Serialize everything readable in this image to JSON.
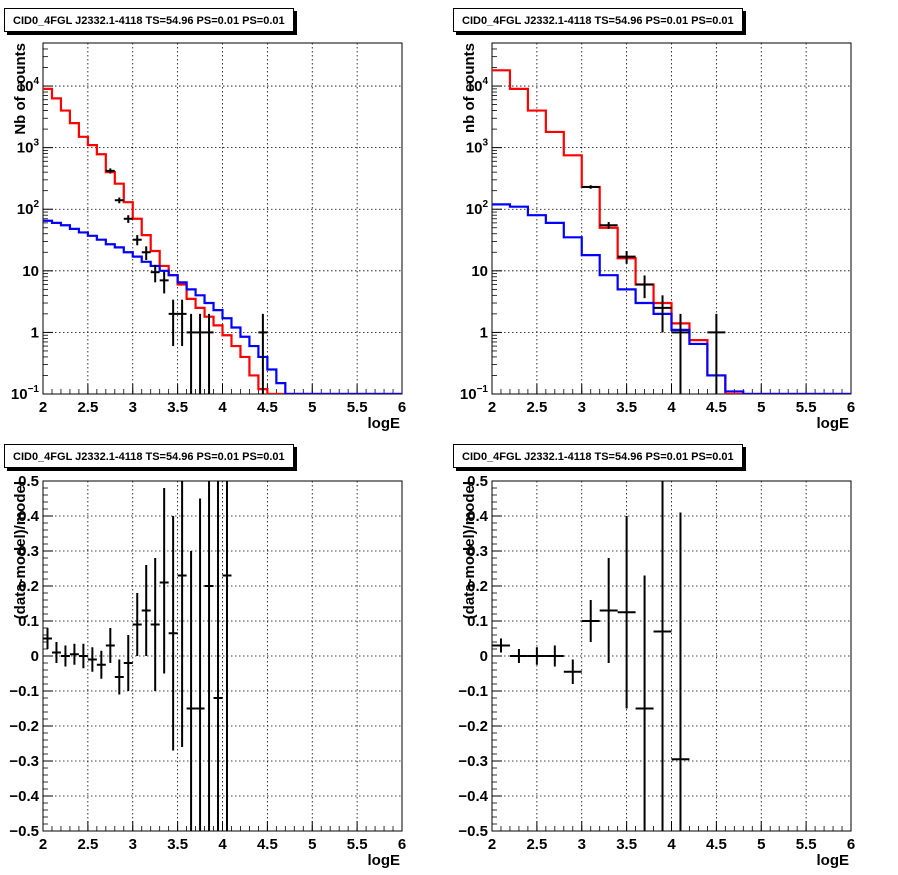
{
  "chart_data": [
    {
      "type": "line",
      "title": "CID0_4FGL J2332.1-4118 TS=54.96 PS=0.01 PS=0.01",
      "xlabel": "logE",
      "ylabel": "Nb of counts",
      "xlim": [
        2,
        6
      ],
      "ylim": [
        0.1,
        50000
      ],
      "yscale": "log",
      "grid": true,
      "x_ticks": [
        "2",
        "2.5",
        "3",
        "3.5",
        "4",
        "4.5",
        "5",
        "5.5",
        "6"
      ],
      "y_ticks": [
        {
          "v": 0.1,
          "b": "10",
          "e": "−1"
        },
        {
          "v": 1,
          "b": "1",
          "e": ""
        },
        {
          "v": 10,
          "b": "10",
          "e": ""
        },
        {
          "v": 100,
          "b": "10",
          "e": "2"
        },
        {
          "v": 1000,
          "b": "10",
          "e": "3"
        },
        {
          "v": 10000,
          "b": "10",
          "e": "4"
        }
      ],
      "bin_width": 0.1,
      "series": [
        {
          "color": "#ff0000",
          "values": [
            9000,
            6300,
            4000,
            2500,
            1500,
            1100,
            780,
            400,
            260,
            130,
            70,
            38,
            21,
            12,
            8.5,
            6,
            3.5,
            2.5,
            1.8,
            1.3,
            0.9,
            0.6,
            0.4,
            0.2,
            0.12,
            0.1,
            0.1,
            0.1,
            0.1,
            0.1,
            0.1,
            0.1,
            0.1,
            0.1,
            0.1,
            0.1,
            0.1,
            0.1,
            0.1,
            0.1
          ]
        },
        {
          "color": "#0000ff",
          "values": [
            65,
            60,
            55,
            48,
            42,
            37,
            32,
            27,
            24,
            20,
            17,
            14,
            12,
            10,
            8.5,
            6.5,
            5,
            4,
            3,
            2.3,
            1.7,
            1.2,
            0.85,
            0.6,
            0.4,
            0.25,
            0.15,
            0.1,
            0.1,
            0.1,
            0.1,
            0.1,
            0.1,
            0.1,
            0.1,
            0.1,
            0.1,
            0.1,
            0.1,
            0.1
          ]
        }
      ],
      "data_points": [
        {
          "x": 2.75,
          "y": 420,
          "lo": 380,
          "hi": 460
        },
        {
          "x": 2.85,
          "y": 140,
          "lo": 125,
          "hi": 155
        },
        {
          "x": 2.95,
          "y": 70,
          "lo": 60,
          "hi": 80
        },
        {
          "x": 3.05,
          "y": 32,
          "lo": 26,
          "hi": 38
        },
        {
          "x": 3.15,
          "y": 20,
          "lo": 15,
          "hi": 25
        },
        {
          "x": 3.25,
          "y": 9.5,
          "lo": 6.5,
          "hi": 12.5
        },
        {
          "x": 3.35,
          "y": 7,
          "lo": 4.3,
          "hi": 9.7
        },
        {
          "x": 3.45,
          "y": 2,
          "lo": 0.6,
          "hi": 3.4
        },
        {
          "x": 3.55,
          "y": 2,
          "lo": 0.6,
          "hi": 3.4
        },
        {
          "x": 3.65,
          "y": 1,
          "lo": 0.1,
          "hi": 2
        },
        {
          "x": 3.75,
          "y": 1,
          "lo": 0.1,
          "hi": 2
        },
        {
          "x": 3.85,
          "y": 1,
          "lo": 0.1,
          "hi": 2
        },
        {
          "x": 4.45,
          "y": 1,
          "lo": 0.1,
          "hi": 2
        }
      ]
    },
    {
      "type": "line",
      "title": "CID0_4FGL J2332.1-4118 TS=54.96 PS=0.01 PS=0.01",
      "xlabel": "logE",
      "ylabel": "nb of counts",
      "xlim": [
        2,
        6
      ],
      "ylim": [
        0.1,
        50000
      ],
      "yscale": "log",
      "grid": true,
      "x_ticks": [
        "2",
        "2.5",
        "3",
        "3.5",
        "4",
        "4.5",
        "5",
        "5.5",
        "6"
      ],
      "y_ticks": [
        {
          "v": 0.1,
          "b": "10",
          "e": "−1"
        },
        {
          "v": 1,
          "b": "1",
          "e": ""
        },
        {
          "v": 10,
          "b": "10",
          "e": ""
        },
        {
          "v": 100,
          "b": "10",
          "e": "2"
        },
        {
          "v": 1000,
          "b": "10",
          "e": "3"
        },
        {
          "v": 10000,
          "b": "10",
          "e": "4"
        }
      ],
      "bin_width": 0.2,
      "series": [
        {
          "color": "#ff0000",
          "values": [
            18000,
            9000,
            4000,
            1800,
            750,
            230,
            50,
            16,
            6,
            3,
            1.4,
            0.75,
            0.2,
            0.1,
            0.1,
            0.1,
            0.1,
            0.1,
            0.1,
            0.1
          ]
        },
        {
          "color": "#0000ff",
          "values": [
            120,
            110,
            80,
            60,
            35,
            18,
            8.5,
            5,
            3,
            2,
            1.1,
            0.65,
            0.2,
            0.11,
            0.1,
            0.1,
            0.1,
            0.1,
            0.1,
            0.1
          ]
        }
      ],
      "data_points": [
        {
          "x": 3.1,
          "y": 230,
          "lo": 215,
          "hi": 245
        },
        {
          "x": 3.3,
          "y": 55,
          "lo": 48,
          "hi": 62
        },
        {
          "x": 3.5,
          "y": 17,
          "lo": 13,
          "hi": 21
        },
        {
          "x": 3.7,
          "y": 6,
          "lo": 3.6,
          "hi": 8.4
        },
        {
          "x": 3.9,
          "y": 2.5,
          "lo": 1,
          "hi": 4
        },
        {
          "x": 4.1,
          "y": 1,
          "lo": 0.1,
          "hi": 2
        },
        {
          "x": 4.5,
          "y": 1,
          "lo": 0.1,
          "hi": 2
        }
      ]
    },
    {
      "type": "scatter",
      "title": "CID0_4FGL J2332.1-4118 TS=54.96 PS=0.01 PS=0.01",
      "xlabel": "logE",
      "ylabel": "(data-model)/model",
      "xlim": [
        2,
        6
      ],
      "ylim": [
        -0.5,
        0.5
      ],
      "grid": true,
      "x_ticks": [
        "2",
        "2.5",
        "3",
        "3.5",
        "4",
        "4.5",
        "5",
        "5.5",
        "6"
      ],
      "y_ticks": [
        "−0.5",
        "−0.4",
        "−0.3",
        "−0.2",
        "−0.1",
        "0",
        "0.1",
        "0.2",
        "0.3",
        "0.4",
        "0.5"
      ],
      "bin_width": 0.1,
      "data_points": [
        {
          "x": 2.05,
          "y": 0.05,
          "lo": 0.02,
          "hi": 0.08
        },
        {
          "x": 2.15,
          "y": 0.01,
          "lo": -0.02,
          "hi": 0.04
        },
        {
          "x": 2.25,
          "y": 0.0,
          "lo": -0.03,
          "hi": 0.03
        },
        {
          "x": 2.35,
          "y": 0.005,
          "lo": -0.025,
          "hi": 0.035
        },
        {
          "x": 2.45,
          "y": 0.0,
          "lo": -0.035,
          "hi": 0.035
        },
        {
          "x": 2.55,
          "y": -0.01,
          "lo": -0.045,
          "hi": 0.025
        },
        {
          "x": 2.65,
          "y": -0.025,
          "lo": -0.065,
          "hi": 0.015
        },
        {
          "x": 2.75,
          "y": 0.03,
          "lo": -0.02,
          "hi": 0.08
        },
        {
          "x": 2.85,
          "y": -0.06,
          "lo": -0.11,
          "hi": -0.01
        },
        {
          "x": 2.95,
          "y": -0.02,
          "lo": -0.1,
          "hi": 0.06
        },
        {
          "x": 3.05,
          "y": 0.09,
          "lo": 0.0,
          "hi": 0.18
        },
        {
          "x": 3.15,
          "y": 0.13,
          "lo": 0.0,
          "hi": 0.26
        },
        {
          "x": 3.25,
          "y": 0.09,
          "lo": -0.1,
          "hi": 0.28
        },
        {
          "x": 3.35,
          "y": 0.21,
          "lo": -0.05,
          "hi": 0.48
        },
        {
          "x": 3.45,
          "y": 0.065,
          "lo": -0.27,
          "hi": 0.4
        },
        {
          "x": 3.55,
          "y": 0.23,
          "lo": -0.26,
          "hi": 0.5
        },
        {
          "x": 3.65,
          "y": -0.15,
          "lo": -0.5,
          "hi": 0.3
        },
        {
          "x": 3.75,
          "y": -0.15,
          "lo": -0.5,
          "hi": 0.45
        },
        {
          "x": 3.85,
          "y": 0.2,
          "lo": -0.5,
          "hi": 0.5
        },
        {
          "x": 3.95,
          "y": -0.12,
          "lo": -0.5,
          "hi": 0.5
        },
        {
          "x": 4.05,
          "y": 0.23,
          "lo": -0.5,
          "hi": 0.5
        }
      ]
    },
    {
      "type": "scatter",
      "title": "CID0_4FGL J2332.1-4118 TS=54.96 PS=0.01 PS=0.01",
      "xlabel": "logE",
      "ylabel": "(data-model)/model",
      "xlim": [
        2,
        6
      ],
      "ylim": [
        -0.5,
        0.5
      ],
      "grid": true,
      "x_ticks": [
        "2",
        "2.5",
        "3",
        "3.5",
        "4",
        "4.5",
        "5",
        "5.5",
        "6"
      ],
      "y_ticks": [
        "−0.5",
        "−0.4",
        "−0.3",
        "−0.2",
        "−0.1",
        "0",
        "0.1",
        "0.2",
        "0.3",
        "0.4",
        "0.5"
      ],
      "bin_width": 0.2,
      "data_points": [
        {
          "x": 2.1,
          "y": 0.03,
          "lo": 0.01,
          "hi": 0.05
        },
        {
          "x": 2.3,
          "y": 0.0,
          "lo": -0.02,
          "hi": 0.02
        },
        {
          "x": 2.5,
          "y": 0.0,
          "lo": -0.025,
          "hi": 0.025
        },
        {
          "x": 2.7,
          "y": 0.0,
          "lo": -0.03,
          "hi": 0.03
        },
        {
          "x": 2.9,
          "y": -0.045,
          "lo": -0.08,
          "hi": -0.01
        },
        {
          "x": 3.1,
          "y": 0.1,
          "lo": 0.04,
          "hi": 0.16
        },
        {
          "x": 3.3,
          "y": 0.13,
          "lo": -0.02,
          "hi": 0.28
        },
        {
          "x": 3.5,
          "y": 0.125,
          "lo": -0.15,
          "hi": 0.4
        },
        {
          "x": 3.7,
          "y": -0.15,
          "lo": -0.5,
          "hi": 0.23
        },
        {
          "x": 3.9,
          "y": 0.07,
          "lo": -0.5,
          "hi": 0.5
        },
        {
          "x": 4.1,
          "y": -0.295,
          "lo": -0.5,
          "hi": 0.41
        }
      ]
    }
  ]
}
